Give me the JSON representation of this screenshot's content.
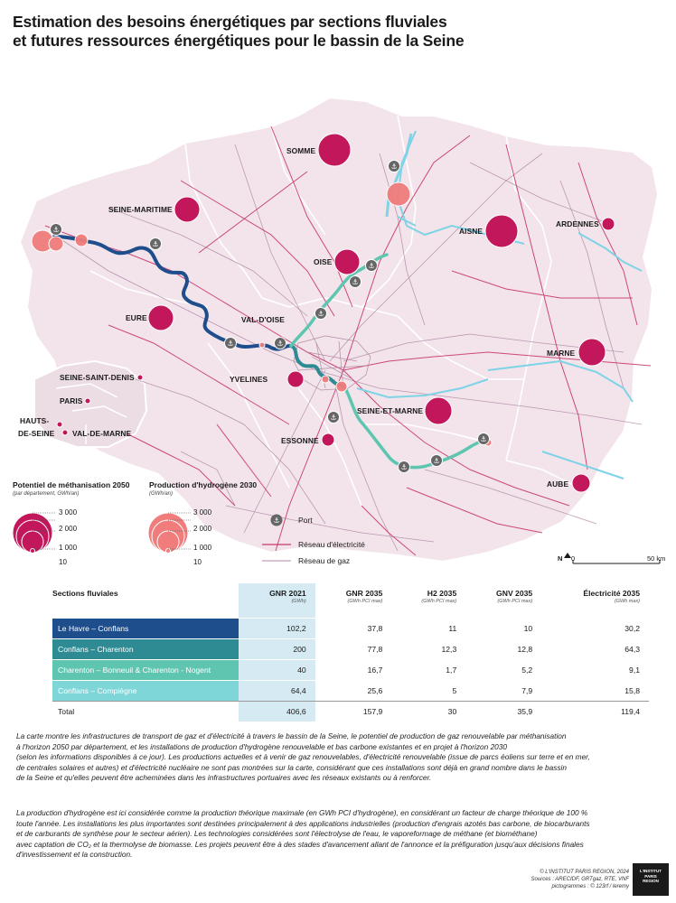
{
  "title": {
    "line1": "Estimation des besoins énergétiques par sections fluviales",
    "line2": "et futures ressources énergétiques pour le bassin de la Seine"
  },
  "map": {
    "labels": {
      "somme": "SOMME",
      "seine_maritime": "SEINE-MARITIME",
      "aisne": "AISNE",
      "ardennes": "ARDENNES",
      "oise": "OISE",
      "eure": "EURE",
      "val_doise": "VAL-D'OISE",
      "marne": "MARNE",
      "seine_saint_denis": "SEINE-SAINT-DENIS",
      "yvelines": "YVELINES",
      "paris": "PARIS",
      "seine_et_marne": "SEINE-ET-MARNE",
      "hauts_de_seine_1": "HAUTS-",
      "hauts_de_seine_2": "DE-SEINE",
      "val_de_marne": "VAL-DE-MARNE",
      "essonne": "ESSONNE",
      "aube": "AUBE"
    },
    "colors": {
      "methanisation": "#c2185b",
      "hydrogene": "#f07c7c",
      "section_1": "#1f4e8c",
      "section_2": "#2e8b93",
      "section_3": "#5ec5b0",
      "section_4": "#7fd6d9",
      "river": "#7fd3e6",
      "electricity": "#c8386a",
      "gas": "#b08aa8",
      "map_fill": "#f2e4ea"
    }
  },
  "legend": {
    "methanisation_title": "Potentiel de méthanisation 2050",
    "methanisation_sub": "(par département, GWh/an)",
    "hydrogene_title": "Production d'hydrogène 2030",
    "hydrogene_sub": "(GWh/an)",
    "values": [
      "3 000",
      "2 000",
      "1 000",
      "10"
    ],
    "port": "Port",
    "electricity": "Réseau d'électricité",
    "gas": "Réseau de gaz",
    "north": "N",
    "scale_min": "0",
    "scale_max": "50 km"
  },
  "table": {
    "headers": [
      {
        "label": "Sections fluviales",
        "unit": ""
      },
      {
        "label": "GNR 2021",
        "unit": "(GWh)"
      },
      {
        "label": "GNR 2035",
        "unit": "(GWh PCI max)"
      },
      {
        "label": "H2 2035",
        "unit": "(GWh PCI max)"
      },
      {
        "label": "GNV 2035",
        "unit": "(GWh PCI max)"
      },
      {
        "label": "Électricité 2035",
        "unit": "(GWh max)"
      }
    ],
    "rows": [
      {
        "section": "Le Havre – Conflans",
        "gnr2021": "102,2",
        "gnr2035": "37,8",
        "h2": "11",
        "gnv": "10",
        "elec": "30,2"
      },
      {
        "section": "Conflans – Charenton",
        "gnr2021": "200",
        "gnr2035": "77,8",
        "h2": "12,3",
        "gnv": "12,8",
        "elec": "64,3"
      },
      {
        "section": "Charenton – Bonneuil & Charenton - Nogent",
        "gnr2021": "40",
        "gnr2035": "16,7",
        "h2": "1,7",
        "gnv": "5,2",
        "elec": "9,1"
      },
      {
        "section": "Conflans – Compiègne",
        "gnr2021": "64,4",
        "gnr2035": "25,6",
        "h2": "5",
        "gnv": "7,9",
        "elec": "15,8"
      },
      {
        "section": "Total",
        "gnr2021": "406,6",
        "gnr2035": "157,9",
        "h2": "30",
        "gnv": "35,9",
        "elec": "119,4"
      }
    ]
  },
  "text": {
    "p1": [
      "La carte montre les infrastructures de transport de gaz et d'électricité à travers le bassin de la Seine, le potentiel de production de gaz renouvelable par méthanisation",
      "à l'horizon 2050 par département, et les installations de production d'hydrogène renouvelable et bas carbone existantes et en projet à l'horizon 2030",
      "(selon les informations disponibles à ce jour). Les productions actuelles et à venir de gaz renouvelables, d'électricité renouvelable (issue de parcs éoliens sur terre et en mer,",
      "de centrales solaires et autres) et d'électricité nucléaire ne sont pas montrées sur la carte, considérant que ces installations sont déjà en grand nombre dans le bassin",
      "de la Seine et qu'elles peuvent être acheminées dans les infrastructures portuaires avec les réseaux existants ou à renforcer."
    ],
    "p2": [
      "La production d'hydrogène est ici considérée comme la production théorique maximale (en GWh PCI d'hydrogène), en considérant un facteur de charge théorique de 100 %",
      "toute l'année. Les installations les plus importantes sont destinées principalement à des applications industrielles (production d'engrais azotés bas carbone, de biocarburants",
      "et de carburants de synthèse pour le secteur aérien). Les technologies considérées sont l'électrolyse de l'eau, le vaporeformage de méthane (et biométhane)",
      "avec captation de CO₂ et la thermolyse de biomasse. Les projets peuvent être à des stades d'avancement allant de l'annonce et la préfiguration jusqu'aux décisions finales",
      "d'investissement et la construction."
    ]
  },
  "credits": {
    "line1": "© L'INSTITUT PARIS REGION, 2024",
    "line2": "Sources : ARECIDF, GRTgaz, RTE, VNF",
    "line3": "pictogrammes : © 123rf / leremy"
  },
  "logo": {
    "line1": "L'INSTITUT",
    "line2": "PARIS",
    "line3": "REGION"
  }
}
